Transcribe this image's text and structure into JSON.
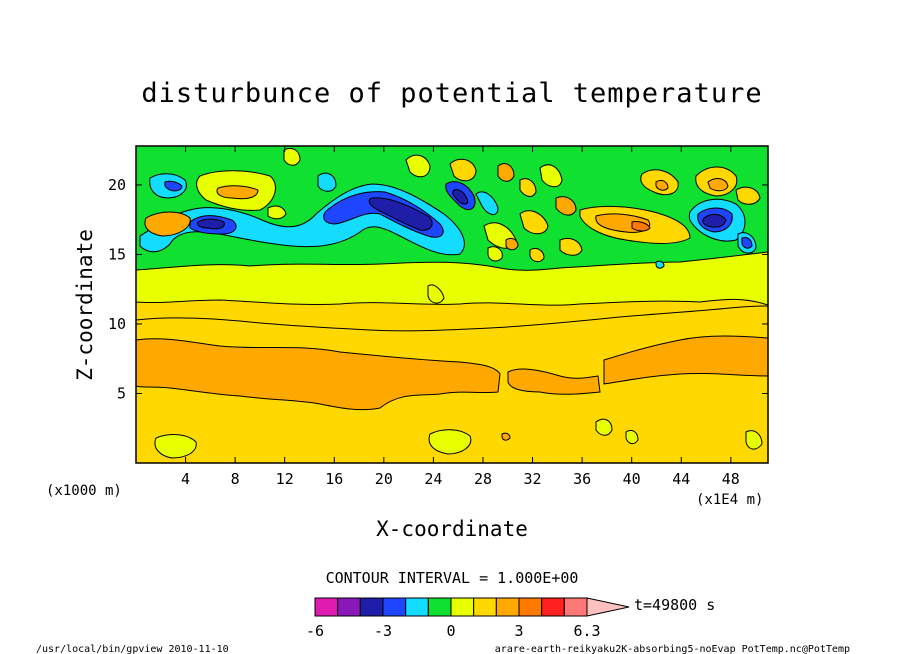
{
  "chart_data": {
    "type": "heatmap",
    "title": "disturbunce of potential temperature",
    "xlabel": "X-coordinate",
    "ylabel": "Z-coordinate",
    "x_unit_left": "(x1000 m)",
    "x_unit_right": "(x1E4 m)",
    "x_ticks": [
      4,
      8,
      12,
      16,
      20,
      24,
      28,
      32,
      36,
      40,
      44,
      48
    ],
    "y_ticks": [
      5,
      10,
      15,
      20
    ],
    "xlim": [
      0,
      51
    ],
    "ylim": [
      0,
      22.8
    ],
    "grid": false,
    "contour_interval_text": "CONTOUR INTERVAL = 1.000E+00",
    "colorbar": {
      "levels": [
        -6,
        -5,
        -4,
        -3,
        -2,
        -1,
        0,
        1,
        2,
        3,
        4,
        5,
        6,
        6.3
      ],
      "colors": [
        "#e01bb0",
        "#8a18b8",
        "#1e1ea8",
        "#1e46ff",
        "#14dcff",
        "#10e030",
        "#e8ff00",
        "#ffd800",
        "#ffa800",
        "#ff7800",
        "#ff2020",
        "#ff7878",
        "#ffc0c0"
      ],
      "tick_labels": [
        "-6",
        "-3",
        "0",
        "3",
        "6.3"
      ]
    },
    "time_label": "t=49800 s",
    "bands": [
      {
        "z_range": [
          0,
          5.1
        ],
        "value_range": [
          0,
          1
        ],
        "label": "yellow-orange"
      },
      {
        "z_range": [
          5.1,
          9.0
        ],
        "value_range": [
          1,
          2
        ],
        "label": "orange"
      },
      {
        "z_range": [
          9.0,
          11.3
        ],
        "value_range": [
          0,
          1
        ],
        "label": "yellow-orange"
      },
      {
        "z_range": [
          11.3,
          13.0
        ],
        "value_range": [
          -1,
          0
        ],
        "label": "yellow"
      },
      {
        "z_range": [
          13.0,
          22.8
        ],
        "value_range": [
          -5,
          2
        ],
        "label": "wave disturbances"
      }
    ]
  },
  "footer": {
    "left": "/usr/local/bin/gpview  2010-11-10",
    "right": "arare-earth-reikyaku2K-absorbing5-noEvap_PotTemp.nc@PotTemp"
  }
}
